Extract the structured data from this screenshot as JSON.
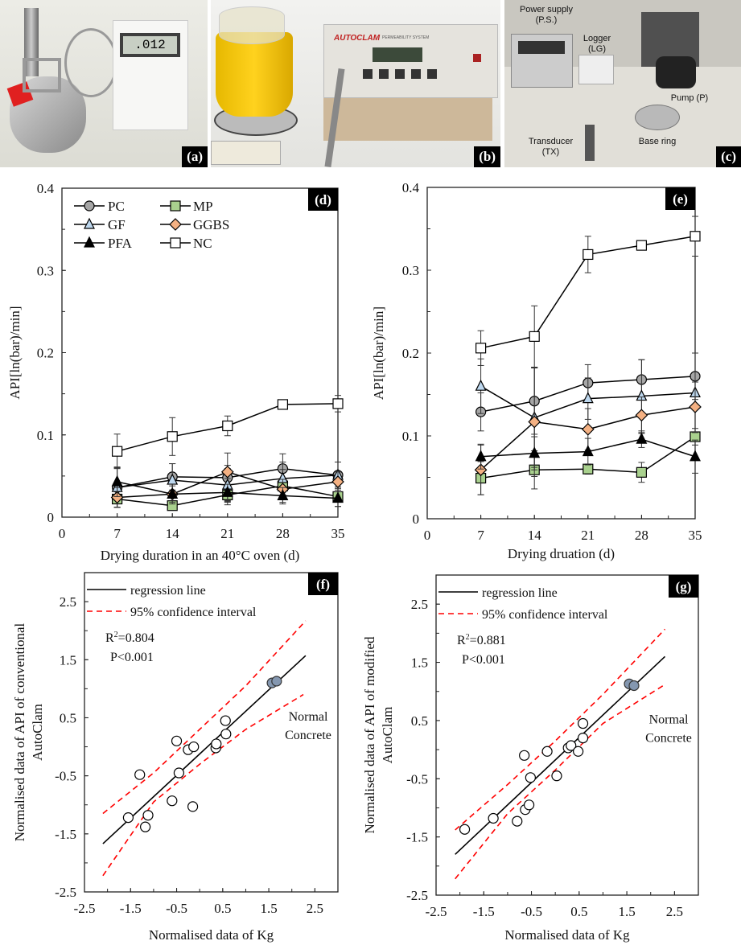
{
  "photos": {
    "a": {
      "label": "(a)",
      "display_reading": ".012"
    },
    "b": {
      "label": "(b)",
      "brand": "AUTOCLAM",
      "subtitle": "PERMEABILITY SYSTEM"
    },
    "c": {
      "label": "(c)",
      "power_supply": "Power supply",
      "power_supply_abbr": "(P.S.)",
      "logger": "Logger",
      "logger_abbr": "(LG)",
      "pump": "Pump (P)",
      "transducer": "Transducer",
      "transducer_abbr": "(TX)",
      "base_ring": "Base ring"
    }
  },
  "chart_data": [
    {
      "id": "d",
      "panel_label": "(d)",
      "type": "line",
      "xlabel": "Drying duration in an 40°C oven (d)",
      "ylabel": "API[ln(bar)/min]",
      "xlim": [
        0,
        35
      ],
      "ylim": [
        0,
        0.4
      ],
      "xticks": [
        "0",
        "7",
        "14",
        "21",
        "28",
        "35"
      ],
      "yticks": [
        "0",
        "0.1",
        "0.2",
        "0.3",
        "0.4"
      ],
      "legend_position": "top-left",
      "x": [
        7,
        14,
        21,
        28,
        35
      ],
      "series": [
        {
          "name": "PC",
          "marker": "circle",
          "color": "#a6a6a6",
          "values": [
            0.036,
            0.049,
            0.048,
            0.059,
            0.051
          ],
          "err": [
            0.024,
            0.016,
            0.03,
            0.018,
            0.016
          ]
        },
        {
          "name": "MP",
          "marker": "square",
          "color": "#a9d18e",
          "values": [
            0.022,
            0.014,
            0.027,
            0.038,
            0.025
          ],
          "err": [
            0.01,
            0.004,
            0.012,
            0.02,
            0.012
          ]
        },
        {
          "name": "GF",
          "marker": "triangle",
          "color": "#bdd7ee",
          "values": [
            0.036,
            0.045,
            0.039,
            0.047,
            0.051
          ],
          "err": [
            0.024,
            0.02,
            0.02,
            0.02,
            0.016
          ]
        },
        {
          "name": "GGBS",
          "marker": "diamond",
          "color": "#f4b183",
          "values": [
            0.024,
            0.028,
            0.055,
            0.034,
            0.043
          ],
          "err": [
            0.012,
            0.012,
            0.008,
            0.012,
            0.012
          ]
        },
        {
          "name": "PFA",
          "marker": "triangle",
          "color": "#000000",
          "values": [
            0.043,
            0.028,
            0.03,
            0.026,
            0.023
          ],
          "err": [
            0.018,
            0.01,
            0.01,
            0.01,
            0.01
          ]
        },
        {
          "name": "NC",
          "marker": "square",
          "color": "#ffffff",
          "values": [
            0.08,
            0.098,
            0.111,
            0.137,
            0.138
          ],
          "err": [
            0.021,
            0.023,
            0.012,
            0.0,
            0.01
          ]
        }
      ]
    },
    {
      "id": "e",
      "panel_label": "(e)",
      "type": "line",
      "xlabel": "Drying druation (d)",
      "ylabel": "API[ln(bar)/min]",
      "xlim": [
        0,
        35
      ],
      "ylim": [
        0,
        0.4
      ],
      "xticks": [
        "0",
        "7",
        "14",
        "21",
        "28",
        "35"
      ],
      "yticks": [
        "0",
        "0.1",
        "0.2",
        "0.3",
        "0.4"
      ],
      "x": [
        7,
        14,
        21,
        28,
        35
      ],
      "series": [
        {
          "name": "PC",
          "marker": "circle",
          "color": "#a6a6a6",
          "values": [
            0.129,
            0.142,
            0.164,
            0.168,
            0.172
          ],
          "err": [
            0.023,
            0.04,
            0.022,
            0.024,
            0.028
          ]
        },
        {
          "name": "MP",
          "marker": "square",
          "color": "#a9d18e",
          "values": [
            0.049,
            0.059,
            0.06,
            0.056,
            0.099
          ],
          "err": [
            0.02,
            0.023,
            0.006,
            0.012,
            0.01
          ]
        },
        {
          "name": "GF",
          "marker": "triangle",
          "color": "#bdd7ee",
          "values": [
            0.16,
            0.122,
            0.145,
            0.148,
            0.152
          ],
          "err": [
            0.033,
            0.06,
            0.025,
            0.044,
            0.048
          ]
        },
        {
          "name": "GGBS",
          "marker": "diamond",
          "color": "#f4b183",
          "values": [
            0.059,
            0.117,
            0.108,
            0.125,
            0.135
          ],
          "err": [
            0.03,
            0.066,
            0.025,
            0.022,
            0.03
          ]
        },
        {
          "name": "PFA",
          "marker": "triangle",
          "color": "#000000",
          "values": [
            0.075,
            0.079,
            0.081,
            0.096,
            0.075
          ],
          "err": [
            0.015,
            0.02,
            0.016,
            0.01,
            0.02
          ]
        },
        {
          "name": "NC",
          "marker": "square",
          "color": "#ffffff",
          "values": [
            0.206,
            0.22,
            0.319,
            0.33,
            0.341
          ],
          "err": [
            0.021,
            0.037,
            0.022,
            0.0,
            0.024
          ]
        }
      ]
    },
    {
      "id": "f",
      "panel_label": "(f)",
      "type": "scatter",
      "xlabel": "Normalised data of Kg",
      "ylabel": "Normalised data of API of conventional",
      "ylabel2": "AutoClam",
      "xlim": [
        -2.5,
        3.0
      ],
      "ylim": [
        -2.5,
        3.0
      ],
      "xticks": [
        "-2.5",
        "-1.5",
        "-0.5",
        "0.5",
        "1.5",
        "2.5"
      ],
      "yticks": [
        "-2.5",
        "-1.5",
        "-0.5",
        "0.5",
        "1.5",
        "2.5"
      ],
      "legend": {
        "regression": "regression line",
        "ci": "95% confidence interval"
      },
      "stats": {
        "r2_prefix": "R",
        "r2_sup": "2",
        "r2_value": "=0.804",
        "p": "P<0.001"
      },
      "annotation": [
        "Normal",
        "Concrete"
      ],
      "regression_line": [
        [
          -2.1,
          -1.67
        ],
        [
          2.3,
          1.57
        ]
      ],
      "ci_upper": [
        [
          -2.1,
          -1.15
        ],
        [
          -1.0,
          -0.45
        ],
        [
          0.0,
          0.3
        ],
        [
          1.0,
          1.05
        ],
        [
          2.3,
          2.17
        ]
      ],
      "ci_lower": [
        [
          -2.1,
          -2.22
        ],
        [
          -1.0,
          -0.95
        ],
        [
          0.0,
          -0.3
        ],
        [
          1.0,
          0.3
        ],
        [
          2.25,
          0.9
        ]
      ],
      "points": [
        [
          -1.55,
          -1.22
        ],
        [
          -1.3,
          -0.48
        ],
        [
          -1.12,
          -1.18
        ],
        [
          -1.18,
          -1.38
        ],
        [
          -0.6,
          -0.93
        ],
        [
          -0.5,
          0.1
        ],
        [
          -0.45,
          -0.45
        ],
        [
          -0.25,
          -0.05
        ],
        [
          -0.13,
          0.0
        ],
        [
          -0.15,
          -1.03
        ],
        [
          0.35,
          -0.02
        ],
        [
          0.36,
          0.05
        ],
        [
          0.56,
          0.45
        ],
        [
          0.57,
          0.22
        ]
      ],
      "highlight_points": [
        [
          1.57,
          1.1
        ],
        [
          1.67,
          1.13
        ]
      ],
      "highlight_color": "#8497b0"
    },
    {
      "id": "g",
      "panel_label": "(g)",
      "type": "scatter",
      "xlabel": "Normalised data of Kg",
      "ylabel": "Normalised data of API of modified",
      "ylabel2": "AutoClam",
      "xlim": [
        -2.5,
        3.0
      ],
      "ylim": [
        -2.5,
        3.0
      ],
      "xticks": [
        "-2.5",
        "-1.5",
        "-0.5",
        "0.5",
        "1.5",
        "2.5"
      ],
      "yticks": [
        "-2.5",
        "-1.5",
        "-0.5",
        "0.5",
        "1.5",
        "2.5"
      ],
      "legend": {
        "regression": "regression line",
        "ci": "95% confidence interval"
      },
      "stats": {
        "r2_prefix": "R",
        "r2_sup": "2",
        "r2_value": "=0.881",
        "p": "P<0.001"
      },
      "annotation": [
        "Normal",
        "Concrete"
      ],
      "regression_line": [
        [
          -2.1,
          -1.8
        ],
        [
          2.3,
          1.6
        ]
      ],
      "ci_upper": [
        [
          -2.1,
          -1.38
        ],
        [
          -1.0,
          -0.6
        ],
        [
          0.0,
          0.15
        ],
        [
          1.0,
          0.95
        ],
        [
          2.3,
          2.07
        ]
      ],
      "ci_lower": [
        [
          -2.1,
          -2.22
        ],
        [
          -1.0,
          -1.1
        ],
        [
          0.0,
          -0.35
        ],
        [
          1.0,
          0.45
        ],
        [
          2.3,
          1.12
        ]
      ],
      "points": [
        [
          -1.9,
          -1.37
        ],
        [
          -1.3,
          -1.18
        ],
        [
          -0.8,
          -1.23
        ],
        [
          -0.63,
          -1.03
        ],
        [
          -0.55,
          -0.95
        ],
        [
          -0.52,
          -0.48
        ],
        [
          -0.65,
          -0.1
        ],
        [
          -0.17,
          -0.03
        ],
        [
          0.03,
          -0.45
        ],
        [
          0.27,
          0.03
        ],
        [
          0.33,
          0.07
        ],
        [
          0.48,
          -0.03
        ],
        [
          0.58,
          0.2
        ],
        [
          0.58,
          0.45
        ]
      ],
      "highlight_points": [
        [
          1.55,
          1.13
        ],
        [
          1.65,
          1.1
        ]
      ],
      "highlight_color": "#8497b0"
    }
  ]
}
